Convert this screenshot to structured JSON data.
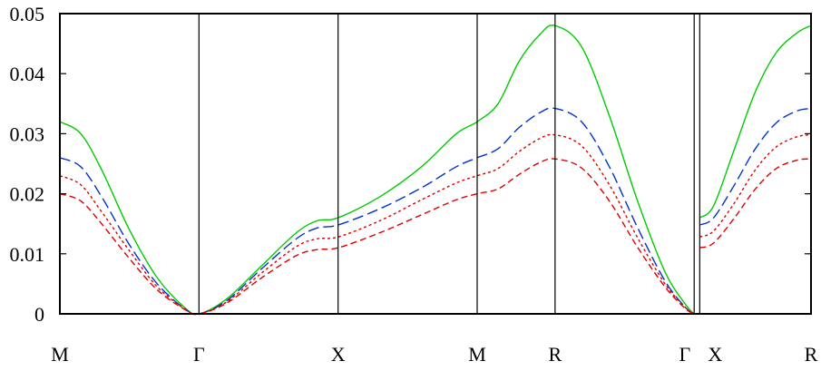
{
  "chart_data": {
    "type": "line",
    "title": "",
    "xlabel": "",
    "ylabel": "",
    "ylim": [
      0,
      0.05
    ],
    "grid": false,
    "legend": "none",
    "segments": [
      {
        "from": "M",
        "to": "Γ",
        "xrange": [
          0,
          1
        ]
      },
      {
        "from": "Γ",
        "to": "X",
        "xrange": [
          1,
          2
        ]
      },
      {
        "from": "X",
        "to": "M",
        "xrange": [
          2,
          3
        ]
      },
      {
        "from": "M",
        "to": "R",
        "xrange": [
          3,
          3.56
        ]
      },
      {
        "from": "R",
        "to": "Γ",
        "xrange": [
          3.56,
          4.56
        ]
      },
      {
        "from": "X",
        "to": "R",
        "xrange": [
          4.6,
          5.4
        ]
      }
    ],
    "x_ticks": [
      {
        "label": "M",
        "x": 0
      },
      {
        "label": "Γ",
        "x": 1
      },
      {
        "label": "X",
        "x": 2
      },
      {
        "label": "M",
        "x": 3
      },
      {
        "label": "R",
        "x": 3.56
      },
      {
        "label": "Γ",
        "x": 4.56
      },
      {
        "label": "X",
        "x": 4.6
      },
      {
        "label": "R",
        "x": 5.4
      }
    ],
    "vlines": [
      1,
      2,
      3,
      3.56,
      4.56,
      4.6
    ],
    "y_ticks": [
      0,
      0.01,
      0.02,
      0.03,
      0.04,
      0.05
    ],
    "y_tick_labels": [
      "0",
      "0.01",
      "0.02",
      "0.03",
      "0.04",
      "0.05"
    ],
    "series": [
      {
        "color": "#00cc00",
        "dash": "solid",
        "points": [
          [
            0,
            0.032
          ],
          [
            0.15,
            0.03
          ],
          [
            0.3,
            0.024
          ],
          [
            0.5,
            0.014
          ],
          [
            0.7,
            0.006
          ],
          [
            0.9,
            0.001
          ],
          [
            1,
            0
          ],
          [
            1.2,
            0.0025
          ],
          [
            1.45,
            0.008
          ],
          [
            1.7,
            0.0135
          ],
          [
            1.85,
            0.0155
          ],
          [
            2,
            0.016
          ],
          [
            2.3,
            0.0195
          ],
          [
            2.6,
            0.0245
          ],
          [
            2.85,
            0.03
          ],
          [
            3,
            0.032
          ],
          [
            3.15,
            0.035
          ],
          [
            3.3,
            0.042
          ],
          [
            3.45,
            0.0465
          ],
          [
            3.56,
            0.048
          ],
          [
            3.75,
            0.0445
          ],
          [
            3.95,
            0.033
          ],
          [
            4.15,
            0.019
          ],
          [
            4.35,
            0.007
          ],
          [
            4.5,
            0.0015
          ],
          [
            4.56,
            0
          ],
          [
            4.6,
            0.016
          ],
          [
            4.7,
            0.018
          ],
          [
            4.85,
            0.0275
          ],
          [
            5.0,
            0.037
          ],
          [
            5.15,
            0.0435
          ],
          [
            5.3,
            0.0468
          ],
          [
            5.4,
            0.048
          ]
        ]
      },
      {
        "color": "#0033cc",
        "dash": "long",
        "points": [
          [
            0,
            0.026
          ],
          [
            0.15,
            0.0245
          ],
          [
            0.3,
            0.0195
          ],
          [
            0.5,
            0.0115
          ],
          [
            0.7,
            0.005
          ],
          [
            0.9,
            0.0008
          ],
          [
            1,
            0
          ],
          [
            1.2,
            0.0022
          ],
          [
            1.45,
            0.0075
          ],
          [
            1.7,
            0.0125
          ],
          [
            1.85,
            0.0143
          ],
          [
            2,
            0.0148
          ],
          [
            2.3,
            0.0175
          ],
          [
            2.6,
            0.021
          ],
          [
            2.85,
            0.0245
          ],
          [
            3,
            0.026
          ],
          [
            3.15,
            0.0275
          ],
          [
            3.3,
            0.031
          ],
          [
            3.45,
            0.0335
          ],
          [
            3.56,
            0.0342
          ],
          [
            3.75,
            0.032
          ],
          [
            3.95,
            0.0245
          ],
          [
            4.15,
            0.0145
          ],
          [
            4.35,
            0.0055
          ],
          [
            4.5,
            0.001
          ],
          [
            4.56,
            0
          ],
          [
            4.6,
            0.0148
          ],
          [
            4.7,
            0.016
          ],
          [
            4.85,
            0.0215
          ],
          [
            5.0,
            0.0275
          ],
          [
            5.15,
            0.0318
          ],
          [
            5.3,
            0.0338
          ],
          [
            5.4,
            0.0342
          ]
        ]
      },
      {
        "color": "#dd0000",
        "dash": "dotted",
        "points": [
          [
            0,
            0.023
          ],
          [
            0.15,
            0.0215
          ],
          [
            0.3,
            0.017
          ],
          [
            0.5,
            0.0105
          ],
          [
            0.7,
            0.0045
          ],
          [
            0.9,
            0.0008
          ],
          [
            1,
            0
          ],
          [
            1.2,
            0.002
          ],
          [
            1.45,
            0.0068
          ],
          [
            1.7,
            0.0112
          ],
          [
            1.85,
            0.0125
          ],
          [
            2,
            0.0128
          ],
          [
            2.3,
            0.0155
          ],
          [
            2.6,
            0.019
          ],
          [
            2.85,
            0.0218
          ],
          [
            3,
            0.023
          ],
          [
            3.15,
            0.0242
          ],
          [
            3.3,
            0.027
          ],
          [
            3.45,
            0.0292
          ],
          [
            3.56,
            0.0298
          ],
          [
            3.75,
            0.028
          ],
          [
            3.95,
            0.0215
          ],
          [
            4.15,
            0.0128
          ],
          [
            4.35,
            0.005
          ],
          [
            4.5,
            0.001
          ],
          [
            4.56,
            0
          ],
          [
            4.6,
            0.0128
          ],
          [
            4.7,
            0.0138
          ],
          [
            4.85,
            0.0185
          ],
          [
            5.0,
            0.024
          ],
          [
            5.15,
            0.0278
          ],
          [
            5.3,
            0.0295
          ],
          [
            5.4,
            0.0298
          ]
        ]
      },
      {
        "color": "#dd0000",
        "dash": "short",
        "points": [
          [
            0,
            0.02
          ],
          [
            0.15,
            0.0188
          ],
          [
            0.3,
            0.015
          ],
          [
            0.5,
            0.0092
          ],
          [
            0.7,
            0.004
          ],
          [
            0.9,
            0.0007
          ],
          [
            1,
            0
          ],
          [
            1.2,
            0.0018
          ],
          [
            1.45,
            0.006
          ],
          [
            1.7,
            0.0097
          ],
          [
            1.85,
            0.0107
          ],
          [
            2,
            0.011
          ],
          [
            2.3,
            0.0135
          ],
          [
            2.6,
            0.0165
          ],
          [
            2.85,
            0.019
          ],
          [
            3,
            0.02
          ],
          [
            3.15,
            0.0208
          ],
          [
            3.3,
            0.0232
          ],
          [
            3.45,
            0.0252
          ],
          [
            3.56,
            0.0258
          ],
          [
            3.75,
            0.0243
          ],
          [
            3.95,
            0.0188
          ],
          [
            4.15,
            0.0112
          ],
          [
            4.35,
            0.0045
          ],
          [
            4.5,
            0.0008
          ],
          [
            4.56,
            0
          ],
          [
            4.6,
            0.011
          ],
          [
            4.7,
            0.0118
          ],
          [
            4.85,
            0.016
          ],
          [
            5.0,
            0.0208
          ],
          [
            5.15,
            0.0242
          ],
          [
            5.3,
            0.0256
          ],
          [
            5.4,
            0.0258
          ]
        ]
      }
    ]
  }
}
